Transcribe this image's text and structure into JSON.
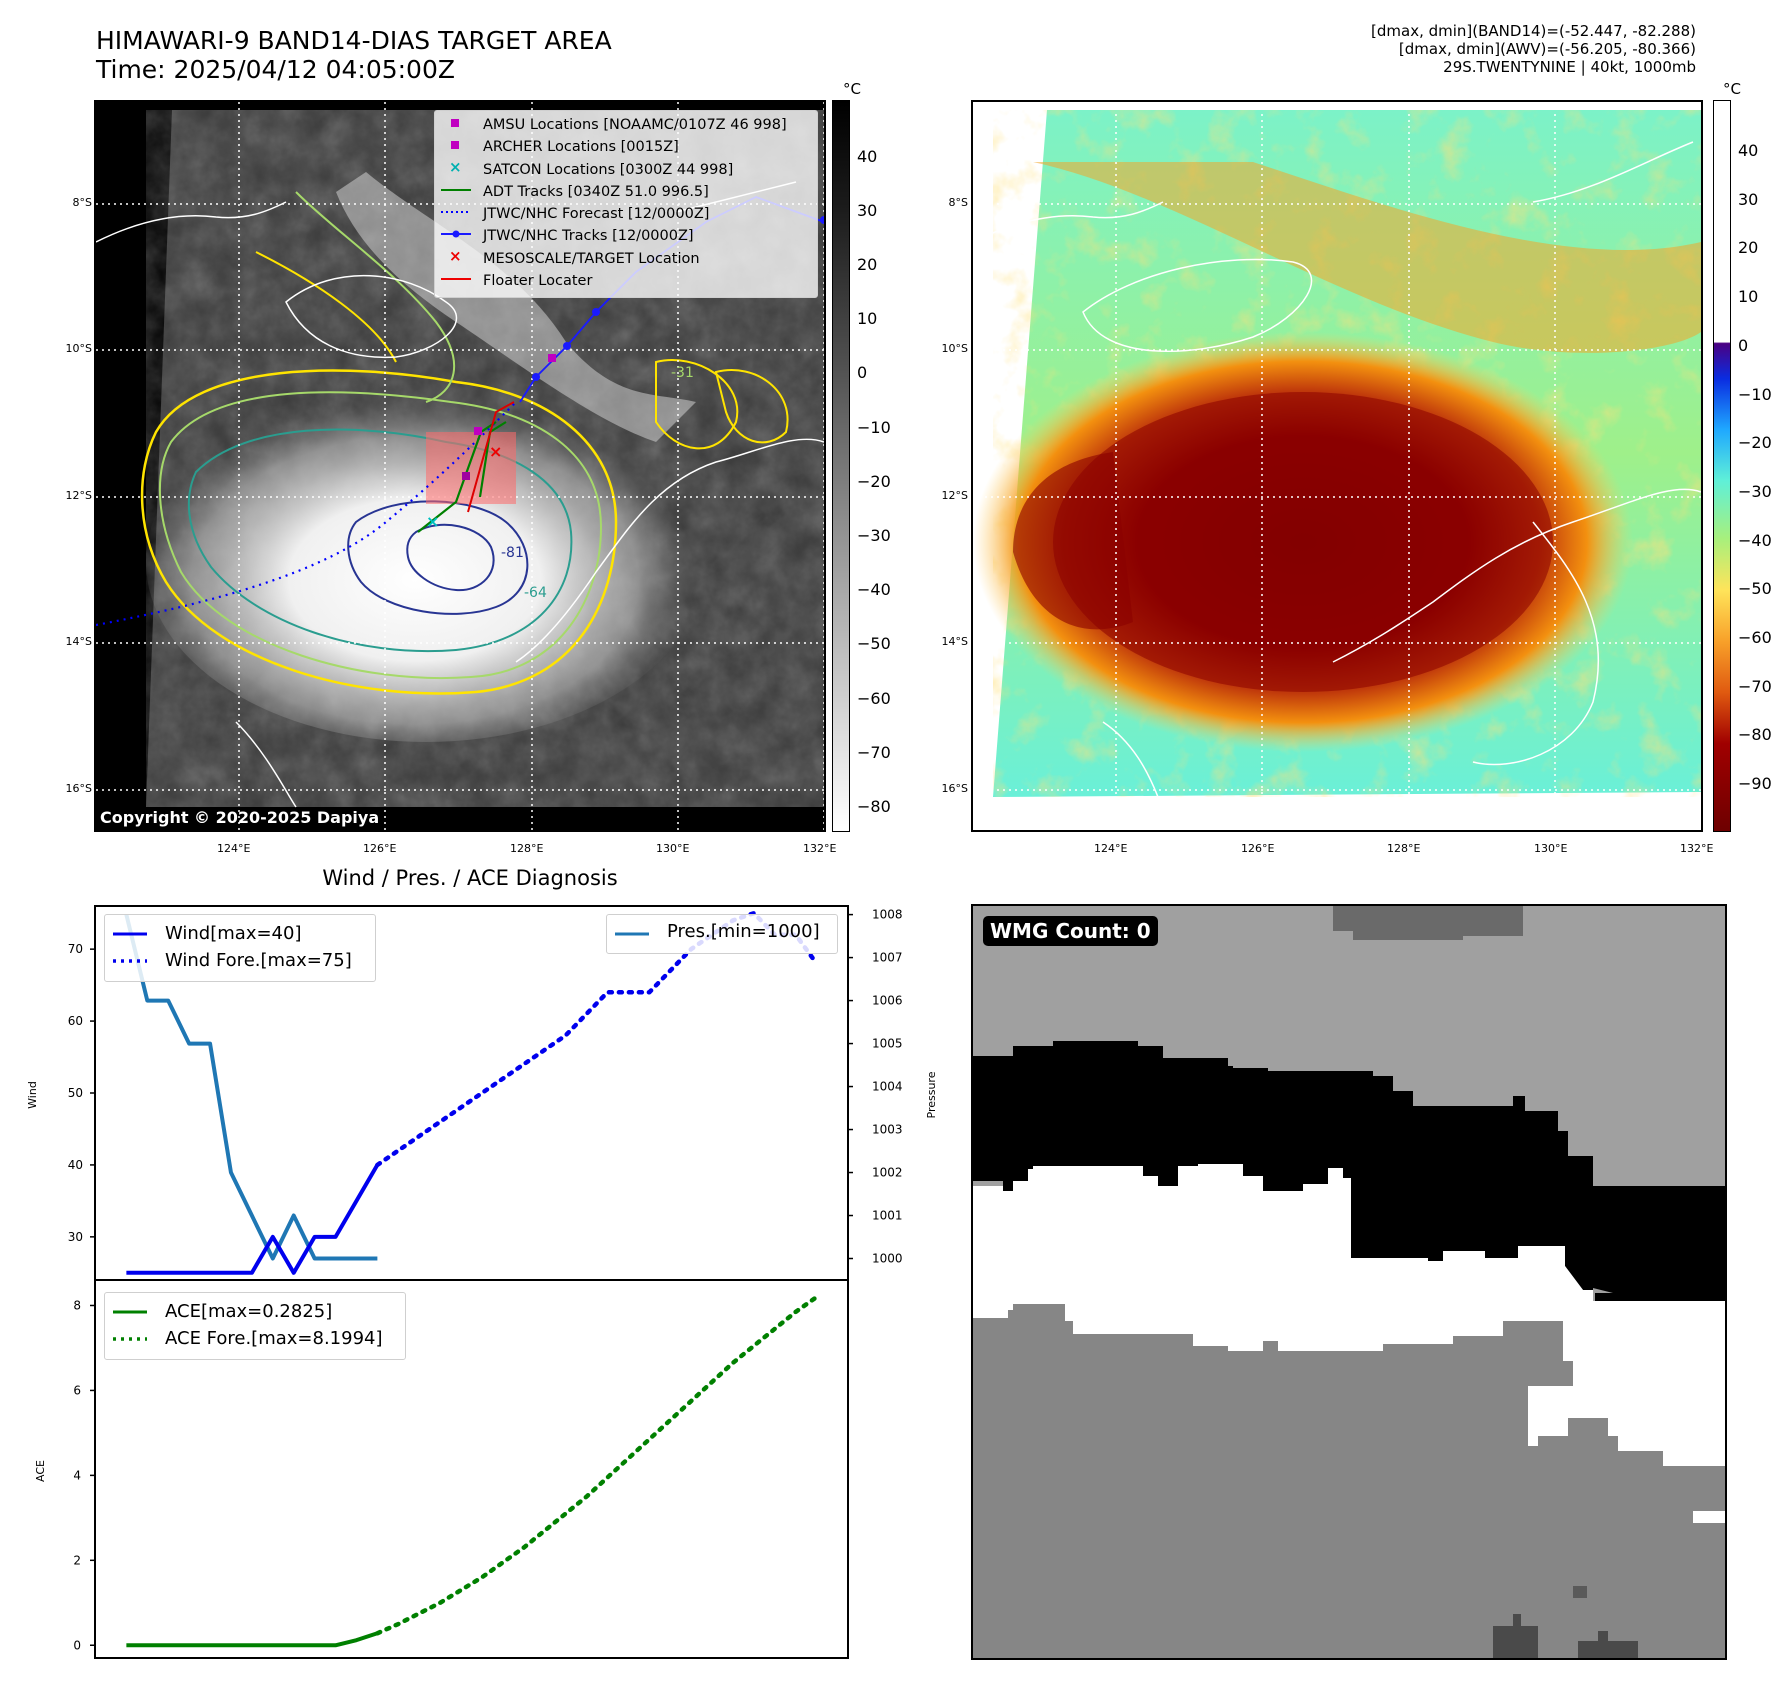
{
  "panel1": {
    "title_line1": "HIMAWARI-9 BAND14-DIAS TARGET AREA",
    "title_line2": "Time: 2025/04/12 04:05:00Z",
    "copyright": "Copyright © 2020-2025 Dapiya",
    "unit": "°C",
    "colorbar_ticks": [
      "40",
      "30",
      "20",
      "10",
      "0",
      "−10",
      "−20",
      "−30",
      "−40",
      "−50",
      "−60",
      "−70",
      "−80"
    ],
    "lat_labels": [
      "8°S",
      "10°S",
      "12°S",
      "14°S",
      "16°S"
    ],
    "lon_labels": [
      "124°E",
      "126°E",
      "128°E",
      "130°E",
      "132°E"
    ],
    "contour_labels": [
      "-64",
      "-81",
      "-31"
    ],
    "legend": [
      "AMSU Locations [NOAAMC/0107Z 46 998]",
      "ARCHER Locations [0015Z]",
      "SATCON Locations [0300Z 44 998]",
      "ADT Tracks [0340Z 51.0 996.5]",
      "JTWC/NHC Forecast [12/0000Z]",
      "JTWC/NHC Tracks [12/0000Z]",
      "MESOSCALE/TARGET Location",
      "Floater Locater"
    ]
  },
  "panel2": {
    "info_line1": "[dmax, dmin](BAND14)=(-52.447, -82.288)",
    "info_line2": "[dmax, dmin](AWV)=(-56.205, -80.366)",
    "info_line3": "29S.TWENTYNINE | 40kt, 1000mb",
    "unit": "°C",
    "colorbar_ticks": [
      "40",
      "30",
      "20",
      "10",
      "0",
      "−10",
      "−20",
      "−30",
      "−40",
      "−50",
      "−60",
      "−70",
      "−80",
      "−90"
    ],
    "lat_labels": [
      "8°S",
      "10°S",
      "12°S",
      "14°S",
      "16°S"
    ],
    "lon_labels": [
      "124°E",
      "126°E",
      "128°E",
      "130°E",
      "132°E"
    ]
  },
  "panel3": {
    "title": "Wind / Pres. / ACE Diagnosis",
    "wind_ylabel": "Wind",
    "pres_ylabel": "Pressure",
    "ace_ylabel": "ACE",
    "legend_wind": "Wind[max=40]",
    "legend_wind_fore": "Wind Fore.[max=75]",
    "legend_pres": "Pres.[min=1000]",
    "legend_ace": "ACE[max=0.2825]",
    "legend_ace_fore": "ACE Fore.[max=8.1994]",
    "colors": {
      "wind": "#0000ee",
      "pres": "#1f77b4",
      "ace": "#008000"
    }
  },
  "panel4": {
    "badge": "WMG Count: 0"
  },
  "chart_data": [
    {
      "type": "line",
      "title": "Wind / Pres. / ACE Diagnosis",
      "ylabel": "Wind",
      "ylim": [
        24,
        76
      ],
      "yticks": [
        30,
        40,
        50,
        60,
        70
      ],
      "x": [
        0,
        1,
        2,
        3,
        4,
        5,
        6,
        7,
        8,
        9,
        10,
        11,
        12,
        13,
        14,
        15,
        16,
        17,
        18,
        19,
        20,
        21,
        22,
        23,
        24,
        25,
        26,
        27,
        28,
        29,
        30,
        31,
        32,
        33
      ],
      "series": [
        {
          "name": "Wind[max=40]",
          "style": "solid",
          "x": [
            0,
            1,
            2,
            3,
            4,
            5,
            6,
            7,
            8,
            9,
            10,
            11,
            12
          ],
          "values": [
            25,
            25,
            25,
            25,
            25,
            25,
            25,
            30,
            25,
            30,
            30,
            35,
            40
          ]
        },
        {
          "name": "Wind Fore.[max=75]",
          "style": "dotted",
          "x": [
            12,
            13,
            14,
            15,
            16,
            17,
            18,
            19,
            20,
            21,
            22,
            23,
            24,
            25,
            26,
            27,
            28,
            29,
            30,
            31,
            32,
            33
          ],
          "values": [
            40,
            42,
            44,
            46,
            48,
            50,
            52,
            54,
            56,
            58,
            61,
            64,
            64,
            64,
            67,
            70,
            72,
            74,
            75,
            72,
            72,
            68
          ]
        }
      ]
    },
    {
      "type": "line",
      "ylabel": "Pressure",
      "ylim": [
        999.5,
        1008.2
      ],
      "yticks": [
        1000,
        1001,
        1002,
        1003,
        1004,
        1005,
        1006,
        1007,
        1008
      ],
      "series": [
        {
          "name": "Pres.[min=1000]",
          "style": "solid",
          "x": [
            0,
            1,
            2,
            3,
            4,
            5,
            6,
            7,
            8,
            9,
            10,
            11,
            12
          ],
          "values": [
            1008,
            1006,
            1006,
            1005,
            1005,
            1002,
            1001,
            1000,
            1001,
            1000,
            1000,
            1000,
            1000
          ]
        }
      ]
    },
    {
      "type": "line",
      "ylabel": "ACE",
      "ylim": [
        -0.3,
        8.6
      ],
      "yticks": [
        0,
        2,
        4,
        6,
        8
      ],
      "series": [
        {
          "name": "ACE[max=0.2825]",
          "style": "solid",
          "x": [
            0,
            1,
            2,
            3,
            4,
            5,
            6,
            7,
            8,
            9,
            10,
            11,
            12
          ],
          "values": [
            0,
            0,
            0,
            0,
            0,
            0,
            0,
            0,
            0,
            0,
            0,
            0.12,
            0.2825
          ]
        },
        {
          "name": "ACE Fore.[max=8.1994]",
          "style": "dotted",
          "x": [
            12,
            13,
            14,
            15,
            16,
            17,
            18,
            19,
            20,
            21,
            22,
            23,
            24,
            25,
            26,
            27,
            28,
            29,
            30,
            31,
            32,
            33
          ],
          "values": [
            0.2825,
            0.5,
            0.75,
            1.0,
            1.3,
            1.6,
            1.95,
            2.3,
            2.7,
            3.1,
            3.5,
            3.95,
            4.4,
            4.85,
            5.3,
            5.75,
            6.2,
            6.65,
            7.05,
            7.45,
            7.85,
            8.1994
          ]
        }
      ]
    }
  ]
}
